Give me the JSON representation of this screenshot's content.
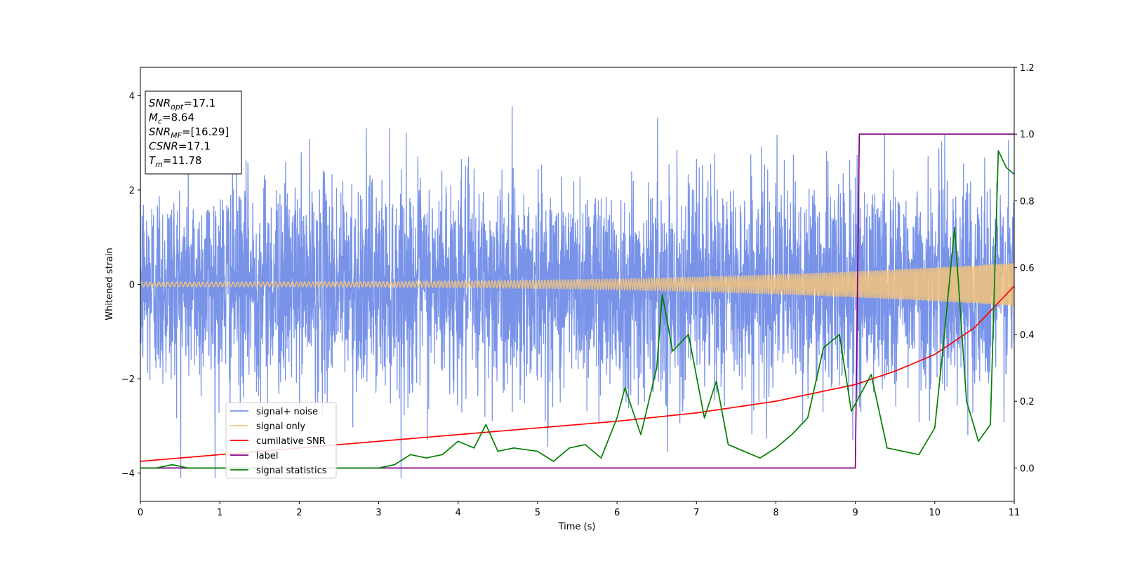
{
  "chart_data": {
    "type": "line",
    "title": "",
    "xlabel": "Time (s)",
    "ylabel": "Whitened strain",
    "xlim": [
      0,
      11
    ],
    "ylim": [
      -4.6,
      4.6
    ],
    "y2lim": [
      -0.1,
      1.2
    ],
    "x_ticks": [
      0,
      1,
      2,
      3,
      4,
      5,
      6,
      7,
      8,
      9,
      10,
      11
    ],
    "y_ticks": [
      -4,
      -2,
      0,
      2,
      4
    ],
    "y2_ticks": [
      0.0,
      0.2,
      0.4,
      0.6,
      0.8,
      1.0,
      1.2
    ],
    "grid": false,
    "legend_position": "lower-left",
    "info_box": [
      {
        "base": "SNR",
        "sub": "opt",
        "value": "=17.1"
      },
      {
        "base": "M",
        "sub": "c",
        "value": "=8.64"
      },
      {
        "base": "SNR",
        "sub": "MF",
        "value": "=[16.29]"
      },
      {
        "base": "CSNR",
        "sub": "",
        "value": "=17.1"
      },
      {
        "base": "T",
        "sub": "m",
        "value": "=11.78"
      }
    ],
    "series": [
      {
        "name": "signal+ noise",
        "color": "#7893e8",
        "axis": "left",
        "kind": "noise",
        "std": 1.1,
        "range": [
          -4.1,
          4.2
        ]
      },
      {
        "name": "signal only",
        "color": "#f5c47a",
        "axis": "left",
        "kind": "chirp",
        "amp_start": 0.05,
        "amp_end": 0.45
      },
      {
        "name": "cumilative SNR",
        "color": "#ff0000",
        "axis": "right",
        "x": [
          0,
          1,
          2,
          3,
          4,
          5,
          6,
          7,
          8,
          9,
          9.5,
          10,
          10.5,
          11
        ],
        "y": [
          0.02,
          0.04,
          0.06,
          0.08,
          0.1,
          0.12,
          0.14,
          0.165,
          0.2,
          0.25,
          0.29,
          0.34,
          0.42,
          0.545
        ]
      },
      {
        "name": "label",
        "color": "#800080",
        "axis": "right",
        "x": [
          0,
          9.0,
          9.05,
          11
        ],
        "y": [
          0,
          0,
          1,
          1
        ]
      },
      {
        "name": "signal statistics",
        "color": "#008000",
        "axis": "right",
        "x": [
          0,
          0.2,
          0.4,
          0.6,
          1.0,
          2.0,
          3.0,
          3.2,
          3.4,
          3.6,
          3.8,
          4.0,
          4.2,
          4.35,
          4.5,
          4.7,
          5.0,
          5.2,
          5.4,
          5.6,
          5.8,
          6.0,
          6.1,
          6.3,
          6.5,
          6.57,
          6.7,
          6.9,
          7.1,
          7.25,
          7.4,
          7.6,
          7.8,
          8.0,
          8.2,
          8.4,
          8.6,
          8.8,
          8.95,
          9.2,
          9.4,
          9.6,
          9.8,
          10.0,
          10.1,
          10.25,
          10.4,
          10.55,
          10.7,
          10.8,
          10.9,
          11.0
        ],
        "y": [
          0,
          0.0,
          0.01,
          0.0,
          0.0,
          0.0,
          0.0,
          0.01,
          0.04,
          0.03,
          0.04,
          0.08,
          0.06,
          0.13,
          0.05,
          0.06,
          0.05,
          0.02,
          0.06,
          0.07,
          0.03,
          0.15,
          0.24,
          0.1,
          0.3,
          0.52,
          0.35,
          0.4,
          0.15,
          0.26,
          0.07,
          0.05,
          0.03,
          0.06,
          0.1,
          0.15,
          0.36,
          0.4,
          0.17,
          0.28,
          0.06,
          0.05,
          0.04,
          0.12,
          0.35,
          0.72,
          0.2,
          0.08,
          0.13,
          0.95,
          0.9,
          0.88
        ]
      }
    ]
  }
}
